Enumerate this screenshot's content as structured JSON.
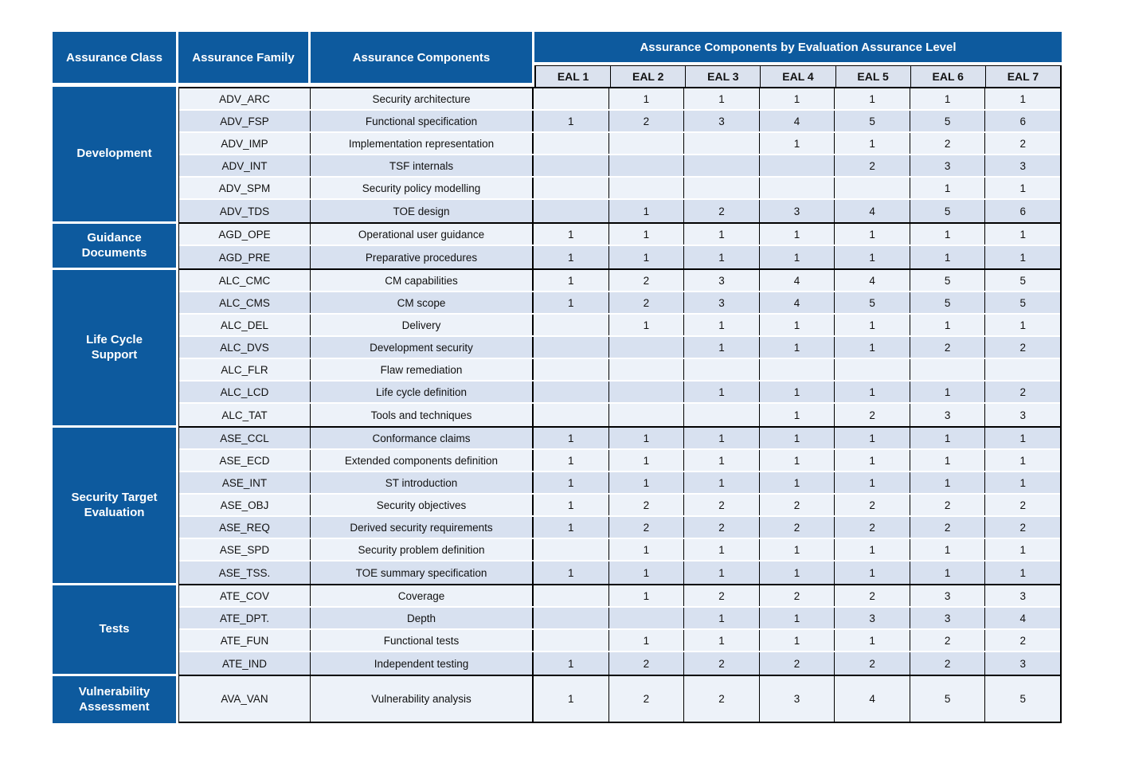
{
  "header": {
    "assurance_class": "Assurance Class",
    "assurance_family": "Assurance Family",
    "assurance_components": "Assurance Components",
    "eal_band": "Assurance Components by Evaluation Assurance Level",
    "eal_levels": [
      "EAL 1",
      "EAL 2",
      "EAL 3",
      "EAL 4",
      "EAL 5",
      "EAL 6",
      "EAL 7"
    ]
  },
  "colors": {
    "header_blue": "#0d5a9e",
    "row_light": "#edf2f9",
    "row_dark": "#d8e1f0",
    "eal_header_bg": "#dbe2ee",
    "border": "#000000",
    "header_text": "#ffffff",
    "body_text": "#111111"
  },
  "chart_data": {
    "type": "table",
    "title": "Assurance Components by Evaluation Assurance Level",
    "column_headers": [
      "Assurance Class",
      "Assurance Family",
      "Assurance Components",
      "EAL 1",
      "EAL 2",
      "EAL 3",
      "EAL 4",
      "EAL 5",
      "EAL 6",
      "EAL 7"
    ],
    "groups": [
      {
        "class": "Development",
        "rows": [
          {
            "family": "ADV_ARC",
            "component": "Security architecture",
            "eal": [
              "",
              "1",
              "1",
              "1",
              "1",
              "1",
              "1"
            ]
          },
          {
            "family": "ADV_FSP",
            "component": "Functional specification",
            "eal": [
              "1",
              "2",
              "3",
              "4",
              "5",
              "5",
              "6"
            ]
          },
          {
            "family": "ADV_IMP",
            "component": "Implementation representation",
            "eal": [
              "",
              "",
              "",
              "1",
              "1",
              "2",
              "2"
            ]
          },
          {
            "family": "ADV_INT",
            "component": "TSF internals",
            "eal": [
              "",
              "",
              "",
              "",
              "2",
              "3",
              "3"
            ]
          },
          {
            "family": "ADV_SPM",
            "component": "Security policy modelling",
            "eal": [
              "",
              "",
              "",
              "",
              "",
              "1",
              "1"
            ]
          },
          {
            "family": "ADV_TDS",
            "component": "TOE design",
            "eal": [
              "",
              "1",
              "2",
              "3",
              "4",
              "5",
              "6"
            ]
          }
        ]
      },
      {
        "class": "Guidance Documents",
        "rows": [
          {
            "family": "AGD_OPE",
            "component": "Operational user guidance",
            "eal": [
              "1",
              "1",
              "1",
              "1",
              "1",
              "1",
              "1"
            ]
          },
          {
            "family": "AGD_PRE",
            "component": "Preparative procedures",
            "eal": [
              "1",
              "1",
              "1",
              "1",
              "1",
              "1",
              "1"
            ]
          }
        ]
      },
      {
        "class": "Life Cycle Support",
        "rows": [
          {
            "family": "ALC_CMC",
            "component": "CM capabilities",
            "eal": [
              "1",
              "2",
              "3",
              "4",
              "4",
              "5",
              "5"
            ]
          },
          {
            "family": "ALC_CMS",
            "component": "CM scope",
            "eal": [
              "1",
              "2",
              "3",
              "4",
              "5",
              "5",
              "5"
            ]
          },
          {
            "family": "ALC_DEL",
            "component": "Delivery",
            "eal": [
              "",
              "1",
              "1",
              "1",
              "1",
              "1",
              "1"
            ]
          },
          {
            "family": "ALC_DVS",
            "component": "Development security",
            "eal": [
              "",
              "",
              "1",
              "1",
              "1",
              "2",
              "2"
            ]
          },
          {
            "family": "ALC_FLR",
            "component": "Flaw remediation",
            "eal": [
              "",
              "",
              "",
              "",
              "",
              "",
              ""
            ]
          },
          {
            "family": "ALC_LCD",
            "component": "Life cycle definition",
            "eal": [
              "",
              "",
              "1",
              "1",
              "1",
              "1",
              "2"
            ]
          },
          {
            "family": "ALC_TAT",
            "component": "Tools and techniques",
            "eal": [
              "",
              "",
              "",
              "1",
              "2",
              "3",
              "3"
            ]
          }
        ]
      },
      {
        "class": "Security Target Evaluation",
        "rows": [
          {
            "family": "ASE_CCL",
            "component": "Conformance claims",
            "eal": [
              "1",
              "1",
              "1",
              "1",
              "1",
              "1",
              "1"
            ]
          },
          {
            "family": "ASE_ECD",
            "component": "Extended components definition",
            "eal": [
              "1",
              "1",
              "1",
              "1",
              "1",
              "1",
              "1"
            ]
          },
          {
            "family": "ASE_INT",
            "component": "ST introduction",
            "eal": [
              "1",
              "1",
              "1",
              "1",
              "1",
              "1",
              "1"
            ]
          },
          {
            "family": "ASE_OBJ",
            "component": "Security objectives",
            "eal": [
              "1",
              "2",
              "2",
              "2",
              "2",
              "2",
              "2"
            ]
          },
          {
            "family": "ASE_REQ",
            "component": "Derived security requirements",
            "eal": [
              "1",
              "2",
              "2",
              "2",
              "2",
              "2",
              "2"
            ]
          },
          {
            "family": "ASE_SPD",
            "component": "Security problem definition",
            "eal": [
              "",
              "1",
              "1",
              "1",
              "1",
              "1",
              "1"
            ]
          },
          {
            "family": "ASE_TSS.",
            "component": "TOE summary specification",
            "eal": [
              "1",
              "1",
              "1",
              "1",
              "1",
              "1",
              "1"
            ]
          }
        ]
      },
      {
        "class": "Tests",
        "rows": [
          {
            "family": "ATE_COV",
            "component": "Coverage",
            "eal": [
              "",
              "1",
              "2",
              "2",
              "2",
              "3",
              "3"
            ]
          },
          {
            "family": "ATE_DPT.",
            "component": "Depth",
            "eal": [
              "",
              "",
              "1",
              "1",
              "3",
              "3",
              "4"
            ]
          },
          {
            "family": "ATE_FUN",
            "component": "Functional tests",
            "eal": [
              "",
              "1",
              "1",
              "1",
              "1",
              "2",
              "2"
            ]
          },
          {
            "family": "ATE_IND",
            "component": "Independent testing",
            "eal": [
              "1",
              "2",
              "2",
              "2",
              "2",
              "2",
              "3"
            ]
          }
        ]
      },
      {
        "class": "Vulnerability Assessment",
        "rows": [
          {
            "family": "AVA_VAN",
            "component": "Vulnerability analysis",
            "eal": [
              "1",
              "2",
              "2",
              "3",
              "4",
              "5",
              "5"
            ]
          }
        ]
      }
    ]
  }
}
